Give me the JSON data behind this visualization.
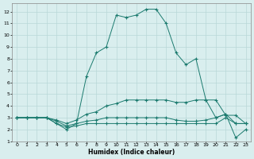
{
  "xlabel": "Humidex (Indice chaleur)",
  "xlim": [
    -0.5,
    23.5
  ],
  "ylim": [
    1,
    12.7
  ],
  "xticks": [
    0,
    1,
    2,
    3,
    4,
    5,
    6,
    7,
    8,
    9,
    10,
    11,
    12,
    13,
    14,
    15,
    16,
    17,
    18,
    19,
    20,
    21,
    22,
    23
  ],
  "yticks": [
    1,
    2,
    3,
    4,
    5,
    6,
    7,
    8,
    9,
    10,
    11,
    12
  ],
  "bg_color": "#d9eeee",
  "grid_color": "#b8d8d8",
  "line_color": "#1a7a6e",
  "lines": [
    {
      "x": [
        0,
        1,
        2,
        3,
        4,
        5,
        6,
        7,
        8,
        9,
        10,
        11,
        12,
        13,
        14,
        15,
        16,
        17,
        18,
        19,
        20,
        21,
        22,
        23
      ],
      "y": [
        3,
        3,
        3,
        3,
        2.5,
        2.0,
        2.5,
        6.5,
        8.5,
        9.0,
        11.7,
        11.5,
        11.7,
        12.2,
        12.2,
        11.0,
        8.5,
        7.5,
        8.0,
        4.5,
        3.0,
        3.3,
        1.3,
        2.0
      ]
    },
    {
      "x": [
        0,
        1,
        2,
        3,
        4,
        5,
        6,
        7,
        8,
        9,
        10,
        11,
        12,
        13,
        14,
        15,
        16,
        17,
        18,
        19,
        20,
        21,
        22,
        23
      ],
      "y": [
        3,
        3,
        3,
        3,
        2.8,
        2.5,
        2.8,
        3.3,
        3.5,
        4.0,
        4.2,
        4.5,
        4.5,
        4.5,
        4.5,
        4.5,
        4.3,
        4.3,
        4.5,
        4.5,
        4.5,
        3.2,
        3.2,
        2.5
      ]
    },
    {
      "x": [
        0,
        1,
        2,
        3,
        4,
        5,
        6,
        7,
        8,
        9,
        10,
        11,
        12,
        13,
        14,
        15,
        16,
        17,
        18,
        19,
        20,
        21,
        22,
        23
      ],
      "y": [
        3,
        3,
        3,
        3,
        2.7,
        2.3,
        2.5,
        2.7,
        2.8,
        3.0,
        3.0,
        3.0,
        3.0,
        3.0,
        3.0,
        3.0,
        2.8,
        2.7,
        2.7,
        2.8,
        3.0,
        3.3,
        2.5,
        2.5
      ]
    },
    {
      "x": [
        0,
        1,
        2,
        3,
        4,
        5,
        6,
        7,
        8,
        9,
        10,
        11,
        12,
        13,
        14,
        15,
        16,
        17,
        18,
        19,
        20,
        21,
        22,
        23
      ],
      "y": [
        3,
        3,
        3,
        3,
        2.5,
        2.2,
        2.3,
        2.5,
        2.5,
        2.5,
        2.5,
        2.5,
        2.5,
        2.5,
        2.5,
        2.5,
        2.5,
        2.5,
        2.5,
        2.5,
        2.5,
        3.0,
        2.5,
        2.5
      ]
    }
  ]
}
